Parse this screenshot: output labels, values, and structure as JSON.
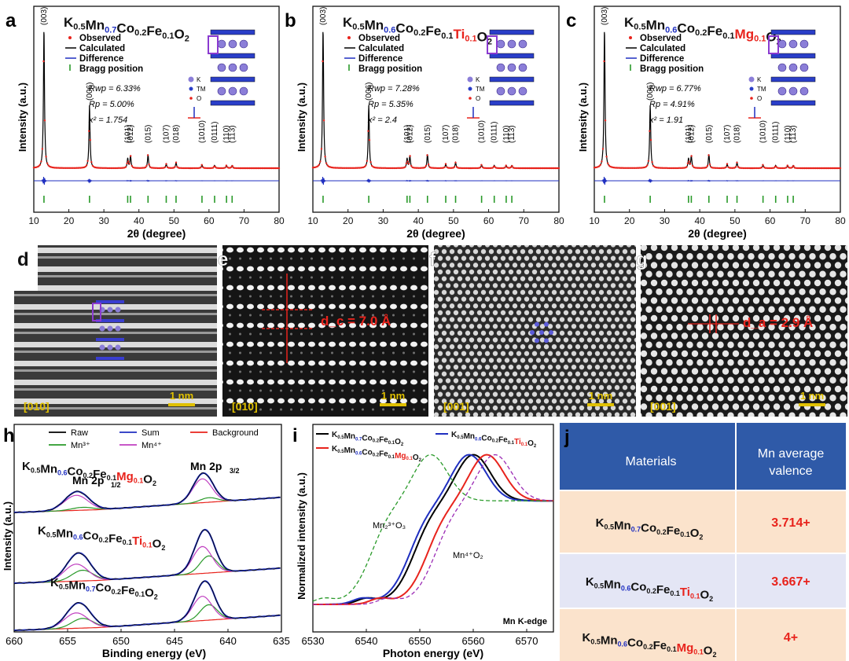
{
  "xrd_panels": [
    {
      "letter": "a",
      "formula": [
        [
          "K",
          ""
        ],
        [
          "0.5",
          "s"
        ],
        [
          "Mn",
          ""
        ],
        [
          "0.7",
          "sb"
        ],
        [
          "Co",
          ""
        ],
        [
          "0.2",
          "s"
        ],
        [
          "Fe",
          ""
        ],
        [
          "0.1",
          "s"
        ],
        [
          "O",
          ""
        ],
        [
          "2",
          "s"
        ]
      ],
      "rwp": "6.33%",
      "rp": "5.00%",
      "chi2": "1.754"
    },
    {
      "letter": "b",
      "formula": [
        [
          "K",
          ""
        ],
        [
          "0.5",
          "s"
        ],
        [
          "Mn",
          ""
        ],
        [
          "0.6",
          "sb"
        ],
        [
          "Co",
          ""
        ],
        [
          "0.2",
          "s"
        ],
        [
          "Fe",
          ""
        ],
        [
          "0.1",
          "s"
        ],
        [
          "Ti",
          "r"
        ],
        [
          "0.1",
          "sr"
        ],
        [
          "O",
          ""
        ],
        [
          "2",
          "s"
        ]
      ],
      "rwp": "7.28%",
      "rp": "5.35%",
      "chi2": "2.4"
    },
    {
      "letter": "c",
      "formula": [
        [
          "K",
          ""
        ],
        [
          "0.5",
          "s"
        ],
        [
          "Mn",
          ""
        ],
        [
          "0.6",
          "sb"
        ],
        [
          "Co",
          ""
        ],
        [
          "0.2",
          "s"
        ],
        [
          "Fe",
          ""
        ],
        [
          "0.1",
          "s"
        ],
        [
          "Mg",
          "r"
        ],
        [
          "0.1",
          "sr"
        ],
        [
          "O",
          ""
        ],
        [
          "2",
          "s"
        ]
      ],
      "rwp": "6.77%",
      "rp": "4.91%",
      "chi2": "1.91"
    }
  ],
  "xrd_legend": [
    "Observed",
    "Calculated",
    "Difference",
    "Bragg position"
  ],
  "xrd_struct_legend": [
    "K",
    "TM",
    "O"
  ],
  "xrd_axis": {
    "xlabel": "2θ (degree)",
    "ylabel": "Intensity (a.u.)",
    "xmin": 10,
    "xmax": 80,
    "xticks": [
      10,
      20,
      30,
      40,
      50,
      60,
      70,
      80
    ]
  },
  "xrd_peaks": [
    {
      "hkl": "(003)",
      "pos": 12.9,
      "h": 1.0
    },
    {
      "hkl": "(006)",
      "pos": 25.9,
      "h": 0.45
    },
    {
      "hkl": "(101)",
      "pos": 36.8,
      "h": 0.07
    },
    {
      "hkl": "(012)",
      "pos": 37.6,
      "h": 0.09
    },
    {
      "hkl": "(015)",
      "pos": 42.6,
      "h": 0.1
    },
    {
      "hkl": "(107)",
      "pos": 47.8,
      "h": 0.03
    },
    {
      "hkl": "(018)",
      "pos": 50.6,
      "h": 0.04
    },
    {
      "hkl": "(1010)",
      "pos": 58.0,
      "h": 0.025
    },
    {
      "hkl": "(0111)",
      "pos": 61.6,
      "h": 0.02
    },
    {
      "hkl": "(110)",
      "pos": 65.0,
      "h": 0.02
    },
    {
      "hkl": "(113)",
      "pos": 66.6,
      "h": 0.02
    }
  ],
  "bragg_positions": [
    12.9,
    25.9,
    36.8,
    37.6,
    42.6,
    47.8,
    50.6,
    58.0,
    61.6,
    65.0,
    66.6
  ],
  "tem_panels": [
    {
      "letter": "d",
      "zone": "[010]",
      "scale": "1 nm"
    },
    {
      "letter": "e",
      "zone": "[010]",
      "scale": "1 nm",
      "spacing": "d_c = 7.0 Å"
    },
    {
      "letter": "f",
      "zone": "[001]",
      "scale": "1 nm"
    },
    {
      "letter": "g",
      "zone": "[001]",
      "scale": "1 nm",
      "spacing": "d_a = 2.9 Å"
    }
  ],
  "xps": {
    "letter": "h",
    "legend": [
      "Raw",
      "Sum",
      "Background",
      "Mn³⁺",
      "Mn⁴⁺"
    ],
    "xlabel": "Binding energy (eV)",
    "ylabel": "Intensity (a.u.)",
    "xticks": [
      660,
      655,
      650,
      645,
      640,
      635
    ],
    "peak_labels": [
      "Mn 2p",
      "1/2",
      "Mn 2p",
      "3/2"
    ],
    "samples": [
      [
        [
          "K",
          ""
        ],
        [
          "0.5",
          "s"
        ],
        [
          "Mn",
          ""
        ],
        [
          "0.6",
          "sb"
        ],
        [
          "Co",
          ""
        ],
        [
          "0.2",
          "s"
        ],
        [
          "Fe",
          ""
        ],
        [
          "0.1",
          "s"
        ],
        [
          "Mg",
          "r"
        ],
        [
          "0.1",
          "sr"
        ],
        [
          "O",
          ""
        ],
        [
          "2",
          "s"
        ]
      ],
      [
        [
          "K",
          ""
        ],
        [
          "0.5",
          "s"
        ],
        [
          "Mn",
          ""
        ],
        [
          "0.6",
          "sb"
        ],
        [
          "Co",
          ""
        ],
        [
          "0.2",
          "s"
        ],
        [
          "Fe",
          ""
        ],
        [
          "0.1",
          "s"
        ],
        [
          "Ti",
          "r"
        ],
        [
          "0.1",
          "sr"
        ],
        [
          "O",
          ""
        ],
        [
          "2",
          "s"
        ]
      ],
      [
        [
          "K",
          ""
        ],
        [
          "0.5",
          "s"
        ],
        [
          "Mn",
          ""
        ],
        [
          "0.7",
          "sb"
        ],
        [
          "Co",
          ""
        ],
        [
          "0.2",
          "s"
        ],
        [
          "Fe",
          ""
        ],
        [
          "0.1",
          "s"
        ],
        [
          "O",
          ""
        ],
        [
          "2",
          "s"
        ]
      ]
    ]
  },
  "xas": {
    "letter": "i",
    "xlabel": "Photon energy (eV)",
    "ylabel": "Normalized intensity (a.u.)",
    "xticks": [
      6530,
      6540,
      6550,
      6560,
      6570
    ],
    "edge_label": "Mn K-edge",
    "ref1": "Mn₂³⁺O₃",
    "ref2": "Mn⁴⁺O₂",
    "series_edges": [
      {
        "color": "#000000",
        "edge": 6549
      },
      {
        "color": "#1f2fc0",
        "edge": 6548.2
      },
      {
        "color": "#e8231c",
        "edge": 6551.5
      },
      {
        "color": "#2a9a2a",
        "edge": 6541,
        "dash": true
      },
      {
        "color": "#9b2bb5",
        "edge": 6553,
        "dash": true
      }
    ]
  },
  "table": {
    "letter": "j",
    "headers": [
      "Materials",
      "Mn average valence"
    ],
    "rows": [
      {
        "formula": [
          [
            "K",
            ""
          ],
          [
            "0.5",
            "s"
          ],
          [
            "Mn",
            ""
          ],
          [
            "0.7",
            "sb"
          ],
          [
            "Co",
            ""
          ],
          [
            "0.2",
            "s"
          ],
          [
            "Fe",
            ""
          ],
          [
            "0.1",
            "s"
          ],
          [
            "O",
            ""
          ],
          [
            "2",
            "s"
          ]
        ],
        "valence": "3.714+"
      },
      {
        "formula": [
          [
            "K",
            ""
          ],
          [
            "0.5",
            "s"
          ],
          [
            "Mn",
            ""
          ],
          [
            "0.6",
            "sb"
          ],
          [
            "Co",
            ""
          ],
          [
            "0.2",
            "s"
          ],
          [
            "Fe",
            ""
          ],
          [
            "0.1",
            "s"
          ],
          [
            "Ti",
            "r"
          ],
          [
            "0.1",
            "sr"
          ],
          [
            "O",
            ""
          ],
          [
            "2",
            "s"
          ]
        ],
        "valence": "3.667+"
      },
      {
        "formula": [
          [
            "K",
            ""
          ],
          [
            "0.5",
            "s"
          ],
          [
            "Mn",
            ""
          ],
          [
            "0.6",
            "sb"
          ],
          [
            "Co",
            ""
          ],
          [
            "0.2",
            "s"
          ],
          [
            "Fe",
            ""
          ],
          [
            "0.1",
            "s"
          ],
          [
            "Mg",
            "r"
          ],
          [
            "0.1",
            "sr"
          ],
          [
            "O",
            ""
          ],
          [
            "2",
            "s"
          ]
        ],
        "valence": "4+"
      }
    ]
  },
  "colors": {
    "red": "#e8231c",
    "blue": "#1f2fc0",
    "green": "#2a9a2a",
    "magenta": "#c040c0",
    "header_blue": "#2f5aa8",
    "row_peach": "#fbe3cc",
    "row_lav": "#e4e6f5",
    "gold": "#e0c000"
  }
}
